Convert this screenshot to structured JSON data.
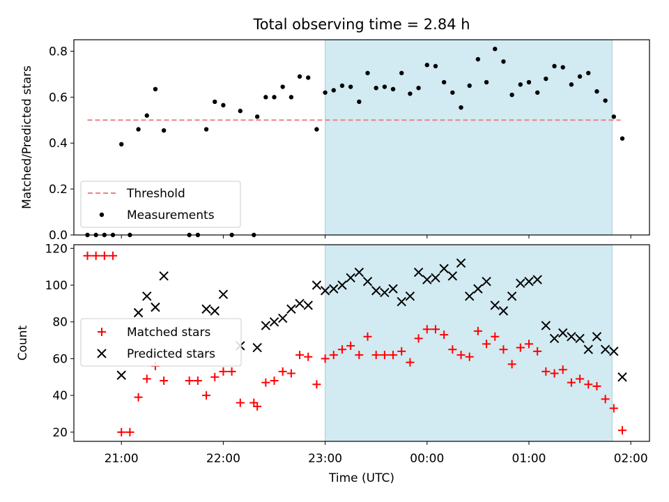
{
  "title": "Total observing time = 2.84 h",
  "xlabel": "Time (UTC)",
  "x_tick_labels": [
    "21:00",
    "22:00",
    "23:00",
    "00:00",
    "01:00",
    "02:00"
  ],
  "colors": {
    "threshold": "#f08080",
    "measurements": "#000000",
    "matched": "#ff0000",
    "predicted": "#000000",
    "shade": "#add8e6"
  },
  "chart_data": [
    {
      "type": "scatter",
      "ylabel": "Matched/Predicted stars",
      "ylim": [
        0,
        0.85
      ],
      "y_ticks": [
        "0.0",
        "0.2",
        "0.4",
        "0.6",
        "0.8"
      ],
      "xlim": [
        "20:32",
        "02:11"
      ],
      "shaded_span": [
        "23:00",
        "01:49"
      ],
      "threshold": {
        "name": "Threshold",
        "value": 0.5,
        "x_range": [
          "20:40",
          "01:54"
        ]
      },
      "legend": {
        "position": "lower left",
        "entries": [
          "Threshold",
          "Measurements"
        ]
      },
      "series": [
        {
          "name": "Measurements",
          "points": [
            [
              "20:40",
              0.0
            ],
            [
              "20:45",
              0.0
            ],
            [
              "20:50",
              0.0
            ],
            [
              "20:55",
              0.0
            ],
            [
              "21:00",
              0.395
            ],
            [
              "21:05",
              0.0
            ],
            [
              "21:10",
              0.46
            ],
            [
              "21:15",
              0.52
            ],
            [
              "21:20",
              0.635
            ],
            [
              "21:25",
              0.455
            ],
            [
              "21:40",
              0.0
            ],
            [
              "21:45",
              0.0
            ],
            [
              "21:50",
              0.46
            ],
            [
              "21:55",
              0.58
            ],
            [
              "22:00",
              0.565
            ],
            [
              "22:05",
              0.0
            ],
            [
              "22:10",
              0.54
            ],
            [
              "22:18",
              0.0
            ],
            [
              "22:20",
              0.515
            ],
            [
              "22:25",
              0.6
            ],
            [
              "22:30",
              0.6
            ],
            [
              "22:35",
              0.645
            ],
            [
              "22:40",
              0.6
            ],
            [
              "22:45",
              0.69
            ],
            [
              "22:50",
              0.685
            ],
            [
              "22:55",
              0.46
            ],
            [
              "23:00",
              0.62
            ],
            [
              "23:05",
              0.63
            ],
            [
              "23:10",
              0.65
            ],
            [
              "23:15",
              0.645
            ],
            [
              "23:20",
              0.58
            ],
            [
              "23:25",
              0.705
            ],
            [
              "23:30",
              0.64
            ],
            [
              "23:35",
              0.645
            ],
            [
              "23:40",
              0.635
            ],
            [
              "23:45",
              0.705
            ],
            [
              "23:50",
              0.615
            ],
            [
              "23:55",
              0.64
            ],
            [
              "00:00",
              0.74
            ],
            [
              "00:05",
              0.735
            ],
            [
              "00:10",
              0.665
            ],
            [
              "00:15",
              0.62
            ],
            [
              "00:20",
              0.555
            ],
            [
              "00:25",
              0.65
            ],
            [
              "00:30",
              0.765
            ],
            [
              "00:35",
              0.665
            ],
            [
              "00:40",
              0.81
            ],
            [
              "00:45",
              0.755
            ],
            [
              "00:50",
              0.61
            ],
            [
              "00:55",
              0.655
            ],
            [
              "01:00",
              0.665
            ],
            [
              "01:05",
              0.62
            ],
            [
              "01:10",
              0.68
            ],
            [
              "01:15",
              0.735
            ],
            [
              "01:20",
              0.73
            ],
            [
              "01:25",
              0.655
            ],
            [
              "01:30",
              0.69
            ],
            [
              "01:35",
              0.705
            ],
            [
              "01:40",
              0.625
            ],
            [
              "01:45",
              0.585
            ],
            [
              "01:50",
              0.515
            ],
            [
              "01:55",
              0.42
            ]
          ]
        }
      ]
    },
    {
      "type": "scatter",
      "ylabel": "Count",
      "ylim": [
        15,
        122
      ],
      "y_ticks": [
        "20",
        "40",
        "60",
        "80",
        "100",
        "120"
      ],
      "xlim": [
        "20:32",
        "02:11"
      ],
      "shaded_span": [
        "23:00",
        "01:49"
      ],
      "legend": {
        "position": "center left",
        "entries": [
          "Matched stars",
          "Predicted stars"
        ]
      },
      "series": [
        {
          "name": "Matched stars",
          "marker": "+",
          "points": [
            [
              "20:40",
              116
            ],
            [
              "20:45",
              116
            ],
            [
              "20:50",
              116
            ],
            [
              "20:55",
              116
            ],
            [
              "21:00",
              20
            ],
            [
              "21:05",
              20
            ],
            [
              "21:10",
              39
            ],
            [
              "21:15",
              49
            ],
            [
              "21:20",
              56
            ],
            [
              "21:25",
              48
            ],
            [
              "21:40",
              48
            ],
            [
              "21:45",
              48
            ],
            [
              "21:50",
              40
            ],
            [
              "21:55",
              50
            ],
            [
              "22:00",
              53
            ],
            [
              "22:05",
              53
            ],
            [
              "22:10",
              36
            ],
            [
              "22:18",
              36
            ],
            [
              "22:20",
              34
            ],
            [
              "22:25",
              47
            ],
            [
              "22:30",
              48
            ],
            [
              "22:35",
              53
            ],
            [
              "22:40",
              52
            ],
            [
              "22:45",
              62
            ],
            [
              "22:50",
              61
            ],
            [
              "22:55",
              46
            ],
            [
              "23:00",
              60
            ],
            [
              "23:05",
              62
            ],
            [
              "23:10",
              65
            ],
            [
              "23:15",
              67
            ],
            [
              "23:20",
              62
            ],
            [
              "23:25",
              72
            ],
            [
              "23:30",
              62
            ],
            [
              "23:35",
              62
            ],
            [
              "23:40",
              62
            ],
            [
              "23:45",
              64
            ],
            [
              "23:50",
              58
            ],
            [
              "23:55",
              71
            ],
            [
              "00:00",
              76
            ],
            [
              "00:05",
              76
            ],
            [
              "00:10",
              73
            ],
            [
              "00:15",
              65
            ],
            [
              "00:20",
              62
            ],
            [
              "00:25",
              61
            ],
            [
              "00:30",
              75
            ],
            [
              "00:35",
              68
            ],
            [
              "00:40",
              72
            ],
            [
              "00:45",
              65
            ],
            [
              "00:50",
              57
            ],
            [
              "00:55",
              66
            ],
            [
              "01:00",
              68
            ],
            [
              "01:05",
              64
            ],
            [
              "01:10",
              53
            ],
            [
              "01:15",
              52
            ],
            [
              "01:20",
              54
            ],
            [
              "01:25",
              47
            ],
            [
              "01:30",
              49
            ],
            [
              "01:35",
              46
            ],
            [
              "01:40",
              45
            ],
            [
              "01:45",
              38
            ],
            [
              "01:50",
              33
            ],
            [
              "01:55",
              21
            ]
          ]
        },
        {
          "name": "Predicted stars",
          "marker": "x",
          "points": [
            [
              "21:00",
              51
            ],
            [
              "21:10",
              85
            ],
            [
              "21:15",
              94
            ],
            [
              "21:20",
              88
            ],
            [
              "21:25",
              105
            ],
            [
              "21:50",
              87
            ],
            [
              "21:55",
              86
            ],
            [
              "22:00",
              95
            ],
            [
              "22:10",
              67
            ],
            [
              "22:20",
              66
            ],
            [
              "22:25",
              78
            ],
            [
              "22:30",
              80
            ],
            [
              "22:35",
              82
            ],
            [
              "22:40",
              87
            ],
            [
              "22:45",
              90
            ],
            [
              "22:50",
              89
            ],
            [
              "22:55",
              100
            ],
            [
              "23:00",
              97
            ],
            [
              "23:05",
              98
            ],
            [
              "23:10",
              100
            ],
            [
              "23:15",
              104
            ],
            [
              "23:20",
              107
            ],
            [
              "23:25",
              102
            ],
            [
              "23:30",
              97
            ],
            [
              "23:35",
              96
            ],
            [
              "23:40",
              98
            ],
            [
              "23:45",
              91
            ],
            [
              "23:50",
              94
            ],
            [
              "23:55",
              107
            ],
            [
              "00:00",
              103
            ],
            [
              "00:05",
              104
            ],
            [
              "00:10",
              109
            ],
            [
              "00:15",
              105
            ],
            [
              "00:20",
              112
            ],
            [
              "00:25",
              94
            ],
            [
              "00:30",
              98
            ],
            [
              "00:35",
              102
            ],
            [
              "00:40",
              89
            ],
            [
              "00:45",
              86
            ],
            [
              "00:50",
              94
            ],
            [
              "00:55",
              101
            ],
            [
              "01:00",
              102
            ],
            [
              "01:05",
              103
            ],
            [
              "01:10",
              78
            ],
            [
              "01:15",
              71
            ],
            [
              "01:20",
              74
            ],
            [
              "01:25",
              72
            ],
            [
              "01:30",
              71
            ],
            [
              "01:35",
              65
            ],
            [
              "01:40",
              72
            ],
            [
              "01:45",
              65
            ],
            [
              "01:50",
              64
            ],
            [
              "01:55",
              50
            ]
          ]
        }
      ]
    }
  ]
}
